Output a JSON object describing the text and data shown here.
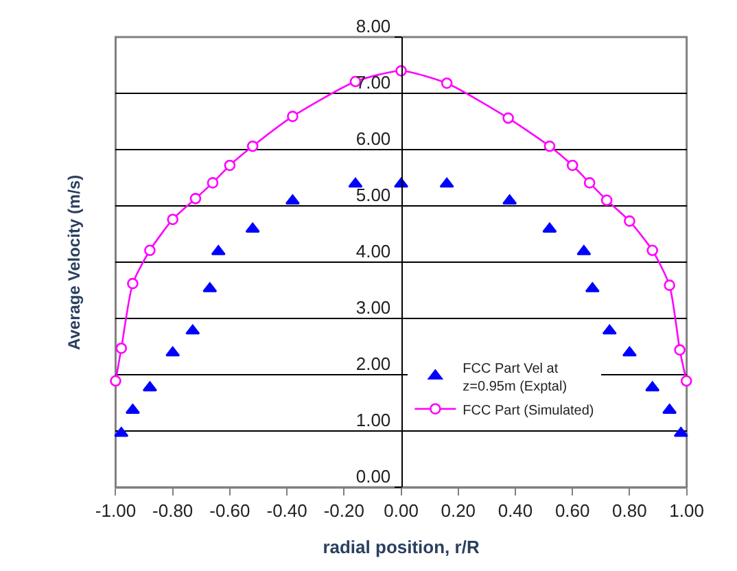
{
  "chart_data": {
    "type": "scatter",
    "xlabel": "radial position, r/R",
    "ylabel": "Average Velocity (m/s)",
    "xlim": [
      -1,
      1
    ],
    "xticks": [
      {
        "value": -1,
        "label": "-1.00"
      },
      {
        "value": -0.8,
        "label": "-0.80"
      },
      {
        "value": -0.6,
        "label": "-0.60"
      },
      {
        "value": -0.4,
        "label": "-0.40"
      },
      {
        "value": -0.2,
        "label": "-0.20"
      },
      {
        "value": 0,
        "label": "0.00"
      },
      {
        "value": 0.2,
        "label": "0.20"
      },
      {
        "value": 0.4,
        "label": "0.40"
      },
      {
        "value": 0.6,
        "label": "0.60"
      },
      {
        "value": 0.8,
        "label": "0.80"
      },
      {
        "value": 1,
        "label": "1.00"
      }
    ],
    "ylim": [
      0,
      8
    ],
    "yticks": [
      {
        "value": 0,
        "label": "0.00"
      },
      {
        "value": 1,
        "label": "1.00"
      },
      {
        "value": 2,
        "label": "2.00"
      },
      {
        "value": 3,
        "label": "3.00"
      },
      {
        "value": 4,
        "label": "4.00"
      },
      {
        "value": 5,
        "label": "5.00"
      },
      {
        "value": 6,
        "label": "6.00"
      },
      {
        "value": 7,
        "label": "7.00"
      },
      {
        "value": 8,
        "label": "8.00"
      }
    ],
    "grid": "y",
    "legend": "bottom",
    "series": [
      {
        "name": "FCC Part Vel at z=0.95m (Exptal)",
        "marker": "triangle",
        "color": "#0000ff",
        "x": [
          -0.98,
          -0.94,
          -0.88,
          -0.8,
          -0.73,
          -0.67,
          -0.64,
          -0.52,
          -0.38,
          -0.16,
          0,
          0.16,
          0.38,
          0.52,
          0.64,
          0.67,
          0.73,
          0.8,
          0.88,
          0.94,
          0.98
        ],
        "values": [
          0.96,
          1.37,
          1.77,
          2.39,
          2.78,
          3.53,
          4.19,
          4.59,
          5.09,
          5.39,
          5.39,
          5.39,
          5.09,
          4.59,
          4.19,
          3.53,
          2.78,
          2.39,
          1.77,
          1.37,
          0.96
        ]
      },
      {
        "name": "FCC Part (Simulated)",
        "type": "line",
        "marker": "circle",
        "color": "#ff00ff",
        "x": [
          -1.0,
          -0.98,
          -0.94,
          -0.88,
          -0.8,
          -0.72,
          -0.66,
          -0.6,
          -0.52,
          -0.38,
          -0.16,
          0,
          0.16,
          0.375,
          0.52,
          0.6,
          0.66,
          0.72,
          0.8,
          0.88,
          0.94,
          0.976,
          0.999
        ],
        "values": [
          1.89,
          2.47,
          3.62,
          4.21,
          4.76,
          5.13,
          5.41,
          5.72,
          6.06,
          6.59,
          7.21,
          7.4,
          7.18,
          6.56,
          6.06,
          5.72,
          5.41,
          5.1,
          4.73,
          4.21,
          3.59,
          2.44,
          1.89
        ]
      }
    ]
  }
}
